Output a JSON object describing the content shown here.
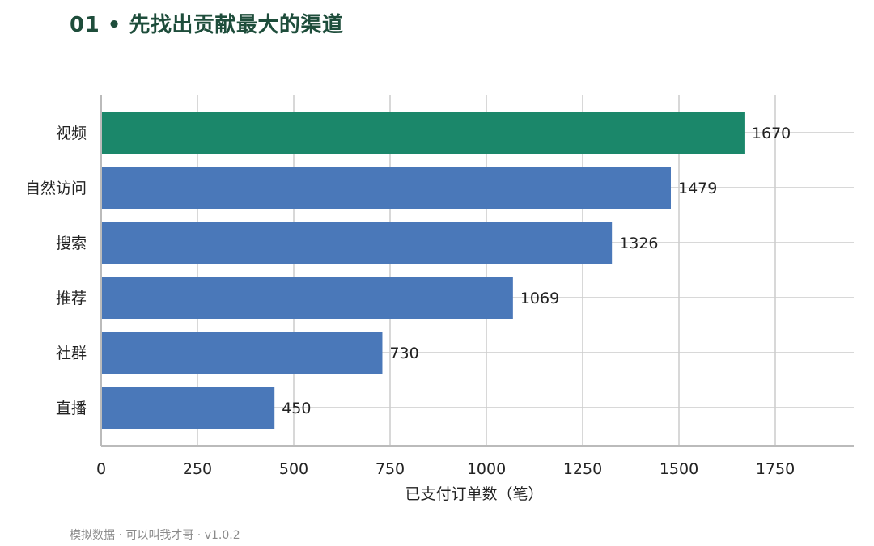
{
  "title": "01 • 先找出贡献最大的渠道",
  "footer": "模拟数据 · 可以叫我才哥 · v1.0.2",
  "colors": {
    "highlight": "#1b876a",
    "default": "#4a78b9",
    "grid": "#cccccc",
    "axis": "#bbbbbb"
  },
  "chart_data": {
    "type": "bar",
    "orientation": "horizontal",
    "categories": [
      "视频",
      "自然访问",
      "搜索",
      "推荐",
      "社群",
      "直播"
    ],
    "values": [
      1670,
      1479,
      1326,
      1069,
      730,
      450
    ],
    "highlight_index": 0,
    "xlabel": "已支付订单数（笔）",
    "ylabel": "",
    "xlim": [
      0,
      1950
    ],
    "xticks": [
      0,
      250,
      500,
      750,
      1000,
      1250,
      1500,
      1750
    ],
    "data_labels": true,
    "grid": true
  }
}
